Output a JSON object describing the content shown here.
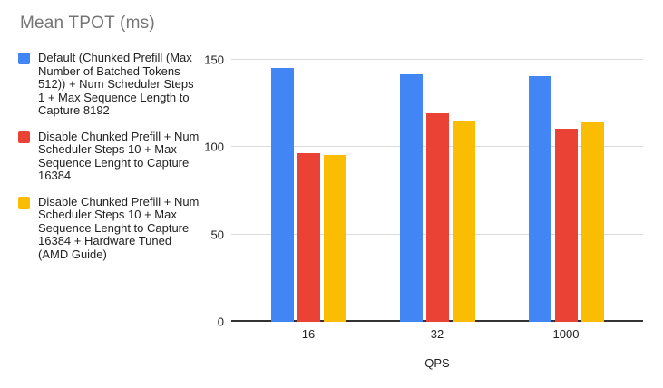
{
  "chart_data": {
    "type": "bar",
    "title": "Mean TPOT (ms)",
    "categories": [
      "16",
      "32",
      "1000"
    ],
    "series": [
      {
        "name": "Default (Chunked Prefill (Max Number of Batched Tokens 512)) + Num Scheduler Steps 1 + Max Sequence Length to Capture 8192",
        "color": "#4285F4",
        "values": [
          145,
          141,
          140
        ]
      },
      {
        "name": "Disable Chunked Prefill + Num Scheduler Steps 10 + Max Sequence Lenght to Capture 16384",
        "color": "#EA4335",
        "values": [
          96,
          119,
          110
        ]
      },
      {
        "name": "Disable Chunked Prefill + Num Scheduler Steps 10 + Max Sequence Lenght to Capture 16384 + Hardware Tuned (AMD Guide)",
        "color": "#FBBC04",
        "values": [
          95,
          115,
          114
        ]
      }
    ],
    "xlabel": "QPS",
    "ylabel": "",
    "ylim": [
      0,
      150
    ],
    "yticks": [
      0,
      50,
      100,
      150
    ],
    "grid": true,
    "legend_position": "left",
    "colors": {
      "title": "#757575",
      "axis_text": "#212121",
      "gridline": "#dadada",
      "baseline": "#333333",
      "background": "#ffffff"
    }
  }
}
